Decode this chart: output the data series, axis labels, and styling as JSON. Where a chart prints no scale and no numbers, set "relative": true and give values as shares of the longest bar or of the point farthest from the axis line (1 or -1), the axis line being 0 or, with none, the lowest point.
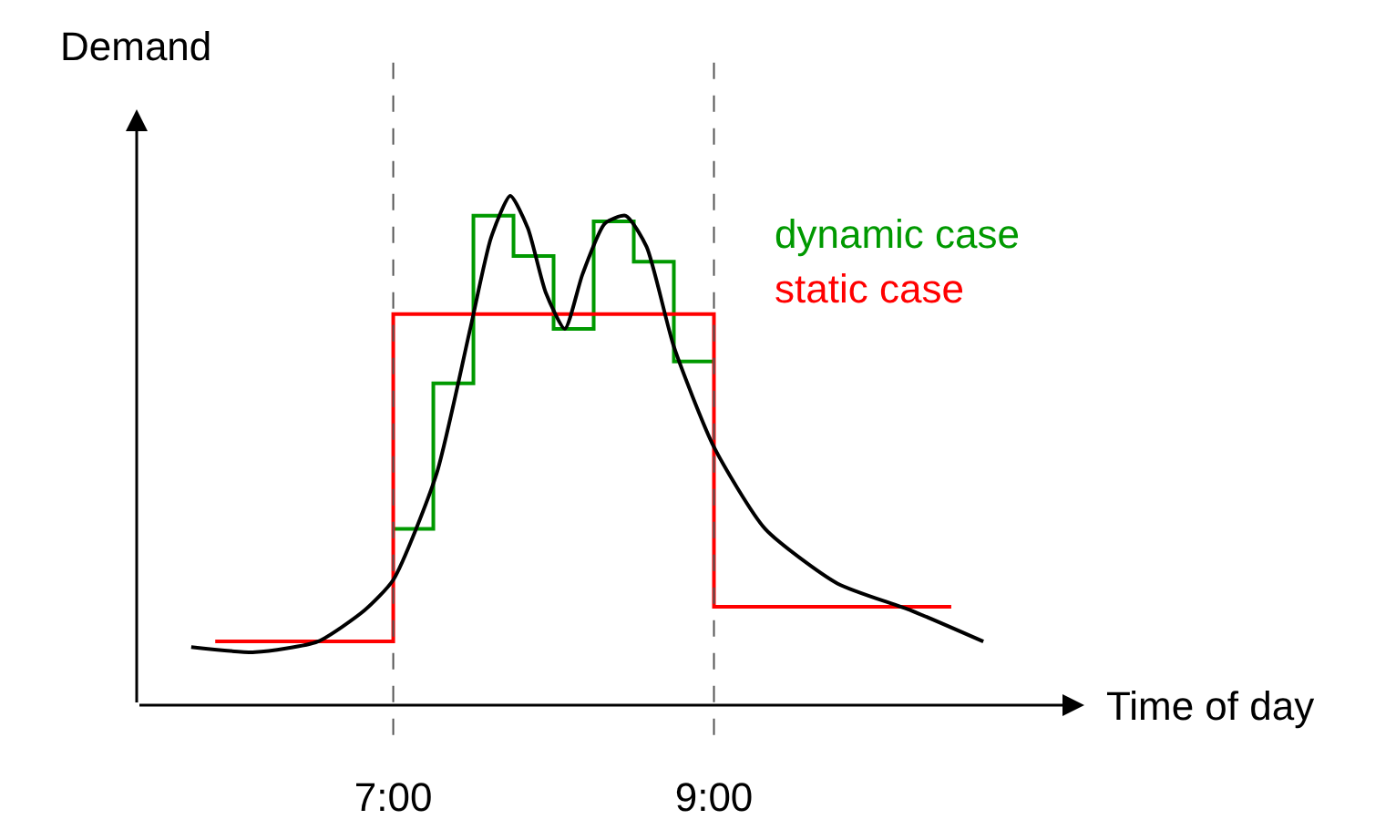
{
  "chart_data": {
    "type": "line",
    "xlabel": "Time of day",
    "ylabel": "Demand",
    "relative": true,
    "legend": false,
    "tick_labels": "x",
    "xlim": [
      5.4,
      11.31
    ],
    "xticks": [
      {
        "value": 7,
        "label": "7:00"
      },
      {
        "value": 9,
        "label": "9:00"
      }
    ],
    "series": [
      {
        "name": "dynamic case",
        "type": "step",
        "color": "#009900",
        "x": [
          7,
          7.25,
          7.5,
          7.75,
          8,
          8.25,
          8.5,
          8.75,
          9
        ],
        "values": [
          0.346,
          0.632,
          0.961,
          0.882,
          0.739,
          0.95,
          0.871,
          0.675,
          0.675
        ]
      },
      {
        "name": "static case",
        "type": "step",
        "color": "#ff0000",
        "x": [
          5.89,
          7,
          9,
          10.48
        ],
        "values": [
          0.125,
          0.768,
          0.193,
          0.193
        ]
      },
      {
        "color": "#000000",
        "x": [
          5.74,
          6.14,
          6.53,
          6.82,
          7,
          7.27,
          7.48,
          7.61,
          7.73,
          7.84,
          7.95,
          8.07,
          8.18,
          8.32,
          8.45,
          8.58,
          8.75,
          9,
          9.32,
          9.77,
          10.23,
          10.68
        ],
        "values": [
          0.114,
          0.104,
          0.125,
          0.186,
          0.246,
          0.454,
          0.739,
          0.918,
          1.0,
          0.936,
          0.811,
          0.739,
          0.846,
          0.946,
          0.961,
          0.9,
          0.704,
          0.507,
          0.346,
          0.239,
          0.186,
          0.125
        ]
      }
    ],
    "ref_lines": [
      {
        "axis": "x",
        "value": 7,
        "color": "#555555",
        "line_style": "dashed"
      },
      {
        "axis": "x",
        "value": 9,
        "color": "#555555",
        "line_style": "dashed"
      }
    ]
  }
}
